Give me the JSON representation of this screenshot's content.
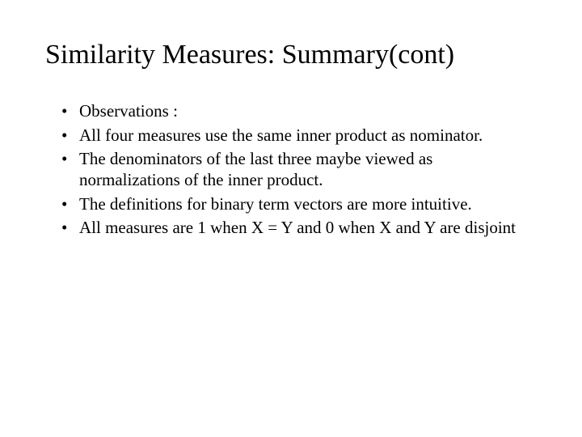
{
  "slide": {
    "title": "Similarity Measures: Summary(cont)",
    "title_fontsize": 34,
    "body_fontsize": 21,
    "background_color": "#ffffff",
    "text_color": "#000000",
    "font_family": "Times New Roman",
    "bullets": [
      "Observations :",
      "All four measures use the same inner product as nominator.",
      "The denominators of the last three maybe viewed as normalizations of the inner product.",
      "The definitions for binary term vectors are more intuitive.",
      "All measures are 1 when X = Y and 0 when X and Y are disjoint"
    ]
  }
}
